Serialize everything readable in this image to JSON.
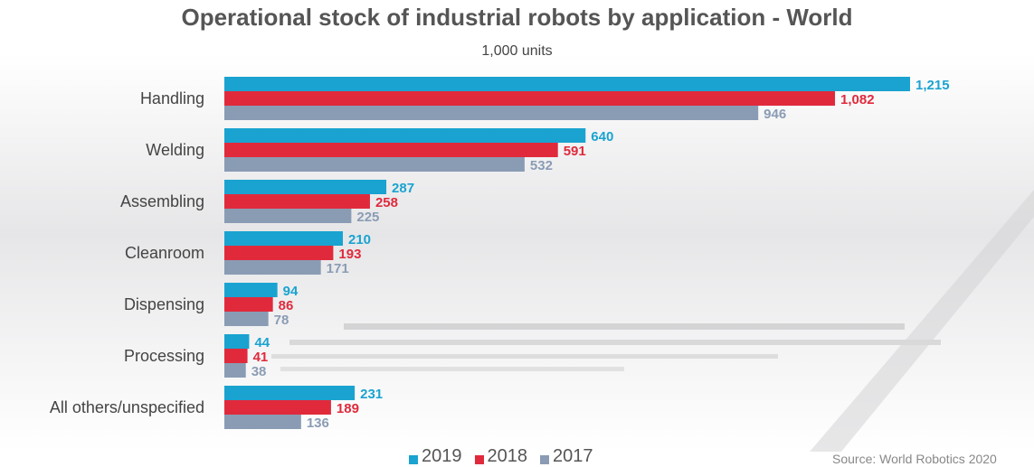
{
  "chart_data": {
    "type": "bar",
    "orientation": "horizontal",
    "title": "Operational stock of industrial robots by application - World",
    "subtitle": "1,000 units",
    "categories": [
      "Handling",
      "Welding",
      "Assembling",
      "Cleanroom",
      "Dispensing",
      "Processing",
      "All others/unspecified"
    ],
    "series": [
      {
        "name": "2019",
        "color": "#1aa3d0",
        "values": [
          1215,
          640,
          287,
          210,
          94,
          44,
          231
        ],
        "labels": [
          "1,215",
          "640",
          "287",
          "210",
          "94",
          "44",
          "231"
        ]
      },
      {
        "name": "2018",
        "color": "#e02a3c",
        "values": [
          1082,
          591,
          258,
          193,
          86,
          41,
          189
        ],
        "labels": [
          "1,082",
          "591",
          "258",
          "193",
          "86",
          "41",
          "189"
        ]
      },
      {
        "name": "2017",
        "color": "#8a9cb4",
        "values": [
          946,
          532,
          225,
          171,
          78,
          38,
          136
        ],
        "labels": [
          "946",
          "532",
          "225",
          "171",
          "78",
          "38",
          "136"
        ]
      }
    ],
    "xlim": [
      0,
      1215
    ],
    "grid": false,
    "legend_position": "bottom"
  },
  "source_text": "Source: World Robotics 2020"
}
